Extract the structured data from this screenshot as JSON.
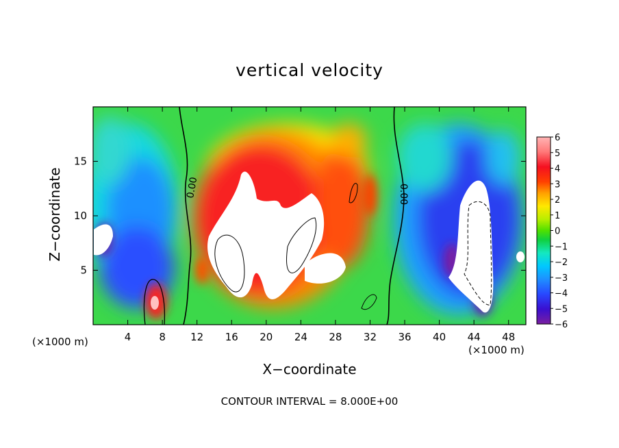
{
  "chart_data": {
    "type": "heatmap",
    "title": "vertical velocity",
    "xlabel": "X−coordinate",
    "ylabel": "Z−coordinate",
    "x_unit_label": "(×1000 m)",
    "xlim": [
      0,
      50
    ],
    "ylim": [
      0,
      20
    ],
    "x_ticks": [
      4,
      8,
      12,
      16,
      20,
      24,
      28,
      32,
      36,
      40,
      44,
      48
    ],
    "y_ticks": [
      5,
      10,
      15
    ],
    "colorbar": {
      "range": [
        -6,
        6
      ],
      "ticks": [
        6,
        5,
        4,
        3,
        2,
        1,
        0,
        -1,
        -2,
        -3,
        -4,
        -5,
        -6
      ],
      "tick_labels": [
        "6",
        "5",
        "4",
        "3",
        "2",
        "1",
        "0",
        "−1",
        "−2",
        "−3",
        "−4",
        "−5",
        "−6"
      ]
    },
    "contour_labels": [
      "0.00",
      "0.00"
    ],
    "annotation": "CONTOUR INTERVAL = 8.000E+00",
    "features": [
      {
        "kind": "updraft",
        "x": [
          12,
          34
        ],
        "z": [
          0,
          18
        ],
        "peak_value": ">6"
      },
      {
        "kind": "downdraft",
        "x": [
          0,
          12
        ],
        "z": [
          2,
          14
        ],
        "min_value": "-5"
      },
      {
        "kind": "downdraft",
        "x": [
          36,
          50
        ],
        "z": [
          0,
          14
        ],
        "min_value": "<-6"
      }
    ]
  },
  "colors": {
    "scale": [
      "#7a1fa0",
      "#3a0fd0",
      "#2848ff",
      "#1e90ff",
      "#00c8ff",
      "#14e8c0",
      "#10d040",
      "#50e000",
      "#b8ee00",
      "#ffe800",
      "#ffa000",
      "#ff4000",
      "#f51020",
      "#ff7878",
      "#ffb4b4"
    ]
  }
}
